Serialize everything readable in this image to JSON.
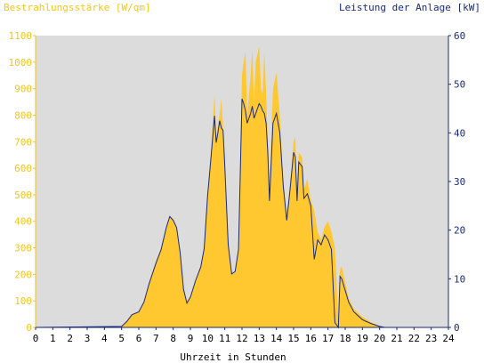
{
  "chart_data": {
    "type": "area",
    "title_left": "Bestrahlungsstärke [W/qm]",
    "title_right": "Leistung der Anlage [kW]",
    "xlabel": "Uhrzeit in Stunden",
    "xlim": [
      0,
      24
    ],
    "x_ticks": [
      "0",
      "1",
      "2",
      "3",
      "4",
      "5",
      "6",
      "7",
      "8",
      "9",
      "10",
      "11",
      "12",
      "13",
      "14",
      "15",
      "16",
      "17",
      "18",
      "19",
      "20",
      "21",
      "22",
      "23",
      "24"
    ],
    "y_left": {
      "label": "Bestrahlungsstärke [W/qm]",
      "range": [
        0,
        1100
      ],
      "ticks": [
        "0",
        "100",
        "200",
        "300",
        "400",
        "500",
        "600",
        "700",
        "800",
        "900",
        "1000",
        "1100"
      ]
    },
    "y_right": {
      "label": "Leistung der Anlage [kW]",
      "range": [
        0,
        60
      ],
      "ticks": [
        "0",
        "10",
        "20",
        "30",
        "40",
        "50",
        "60"
      ]
    },
    "background_color": "#dcdcdc",
    "grid": false,
    "series": [
      {
        "axis": "left",
        "style": "area",
        "color": "#ffc830",
        "x": [
          0,
          5.0,
          5.3,
          5.6,
          6.0,
          6.3,
          6.6,
          7.0,
          7.3,
          7.6,
          7.8,
          8.0,
          8.2,
          8.4,
          8.6,
          8.8,
          9.0,
          9.3,
          9.6,
          9.8,
          10.0,
          10.2,
          10.4,
          10.5,
          10.6,
          10.7,
          10.8,
          10.9,
          11.0,
          11.2,
          11.4,
          11.6,
          11.8,
          12.0,
          12.1,
          12.2,
          12.3,
          12.5,
          12.6,
          12.7,
          12.8,
          13.0,
          13.1,
          13.2,
          13.3,
          13.4,
          13.5,
          13.6,
          13.8,
          14.0,
          14.2,
          14.4,
          14.6,
          14.8,
          15.0,
          15.1,
          15.2,
          15.3,
          15.5,
          15.6,
          15.8,
          16.0,
          16.2,
          16.4,
          16.6,
          16.8,
          17.0,
          17.2,
          17.4,
          17.6,
          17.7,
          17.8,
          18.0,
          18.2,
          18.5,
          19.0,
          19.5,
          20.0,
          20.3,
          24
        ],
        "y": [
          0,
          5,
          25,
          50,
          60,
          100,
          170,
          250,
          300,
          380,
          420,
          410,
          380,
          290,
          150,
          100,
          120,
          180,
          230,
          300,
          500,
          660,
          880,
          720,
          760,
          800,
          860,
          760,
          600,
          320,
          200,
          210,
          300,
          950,
          1000,
          1040,
          800,
          950,
          1050,
          850,
          1000,
          1060,
          900,
          880,
          1040,
          880,
          700,
          500,
          900,
          960,
          800,
          560,
          420,
          540,
          700,
          720,
          480,
          660,
          640,
          520,
          560,
          480,
          440,
          360,
          330,
          380,
          400,
          360,
          300,
          20,
          220,
          230,
          170,
          110,
          70,
          40,
          20,
          5,
          0,
          0
        ]
      },
      {
        "axis": "right",
        "style": "line",
        "color": "#1a2a7a",
        "x": [
          0,
          5.0,
          5.3,
          5.6,
          6.0,
          6.3,
          6.6,
          7.0,
          7.3,
          7.6,
          7.8,
          8.0,
          8.2,
          8.4,
          8.6,
          8.8,
          9.0,
          9.3,
          9.6,
          9.8,
          10.0,
          10.2,
          10.4,
          10.5,
          10.6,
          10.7,
          10.8,
          10.9,
          11.0,
          11.2,
          11.4,
          11.6,
          11.8,
          12.0,
          12.1,
          12.2,
          12.3,
          12.5,
          12.6,
          12.7,
          12.8,
          13.0,
          13.1,
          13.2,
          13.3,
          13.4,
          13.5,
          13.6,
          13.8,
          14.0,
          14.2,
          14.4,
          14.6,
          14.8,
          15.0,
          15.1,
          15.2,
          15.3,
          15.5,
          15.6,
          15.8,
          16.0,
          16.2,
          16.4,
          16.6,
          16.8,
          17.0,
          17.2,
          17.4,
          17.6,
          17.7,
          17.8,
          18.0,
          18.2,
          18.5,
          19.0,
          19.5,
          20.0,
          20.3,
          24
        ],
        "y": [
          0,
          0.2,
          1.2,
          2.6,
          3.2,
          5.2,
          9.0,
          13.2,
          16.0,
          20.5,
          22.8,
          22.0,
          20.5,
          15.5,
          7.8,
          5.0,
          6.2,
          9.6,
          12.4,
          16.2,
          27.0,
          35.0,
          43.5,
          38.0,
          40.0,
          42.5,
          41.0,
          40.5,
          33.0,
          17.0,
          11.0,
          11.5,
          16.0,
          47.0,
          46.0,
          44.5,
          42.0,
          44.0,
          45.5,
          43.0,
          44.0,
          46.0,
          45.5,
          44.5,
          44.0,
          42.0,
          36.0,
          26.0,
          42.0,
          44.0,
          40.0,
          29.0,
          22.0,
          28.5,
          36.0,
          35.0,
          26.0,
          34.0,
          33.0,
          26.5,
          27.5,
          25.0,
          14.0,
          18.0,
          17.0,
          19.0,
          18.0,
          16.0,
          1.0,
          0,
          10.5,
          10.0,
          7.6,
          5.2,
          3.2,
          1.6,
          0.8,
          0.2,
          0,
          0
        ]
      }
    ]
  }
}
